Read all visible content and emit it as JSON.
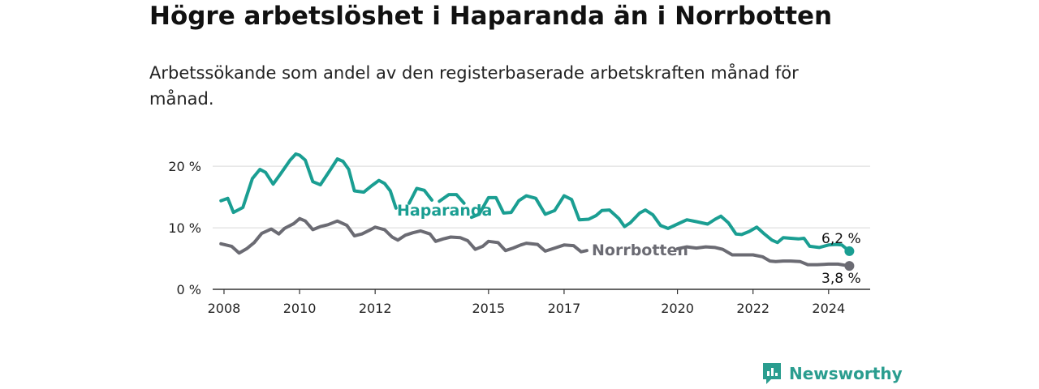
{
  "header": {
    "title": "Högre arbetslöshet i Haparanda än i Norrbotten",
    "subtitle": "Arbetssökande som andel av den registerbaserade arbetskraften månad för månad."
  },
  "brand": {
    "name": "Newsworthy",
    "icon": "newsworthy-logo-icon",
    "color": "#2a9d8f"
  },
  "chart_data": {
    "type": "line",
    "title": "Högre arbetslöshet i Haparanda än i Norrbotten",
    "subtitle": "Arbetssökande som andel av den registerbaserade arbetskraften månad för månad.",
    "xlabel": "",
    "ylabel": "",
    "xlim": [
      2007.7,
      2025.1
    ],
    "ylim": [
      0,
      22
    ],
    "y_ticks": [
      0,
      10,
      20
    ],
    "y_tick_labels": [
      "0 %",
      "10 %",
      "20 %"
    ],
    "x_ticks": [
      2008,
      2010,
      2012,
      2015,
      2017,
      2020,
      2022,
      2024
    ],
    "x_tick_labels": [
      "2008",
      "2010",
      "2012",
      "2015",
      "2017",
      "2020",
      "2022",
      "2024"
    ],
    "grid": "horizontal",
    "series": [
      {
        "name": "Haparanda",
        "color": "#1a9e92",
        "end_label": "6,2 %",
        "points": [
          [
            2007.92,
            14.4
          ],
          [
            2008.1,
            14.8
          ],
          [
            2008.25,
            12.5
          ],
          [
            2008.5,
            13.3
          ],
          [
            2008.75,
            18.0
          ],
          [
            2008.95,
            19.5
          ],
          [
            2009.1,
            19.0
          ],
          [
            2009.3,
            17.1
          ],
          [
            2009.5,
            18.8
          ],
          [
            2009.75,
            21.0
          ],
          [
            2009.9,
            22.0
          ],
          [
            2010.0,
            21.8
          ],
          [
            2010.15,
            21.0
          ],
          [
            2010.35,
            17.5
          ],
          [
            2010.55,
            17.0
          ],
          [
            2010.8,
            19.3
          ],
          [
            2011.0,
            21.2
          ],
          [
            2011.15,
            20.8
          ],
          [
            2011.3,
            19.5
          ],
          [
            2011.45,
            16.0
          ],
          [
            2011.7,
            15.8
          ],
          [
            2011.9,
            16.8
          ],
          [
            2012.1,
            17.7
          ],
          [
            2012.25,
            17.2
          ],
          [
            2012.4,
            16.0
          ],
          [
            2012.55,
            13.2
          ],
          null,
          [
            2012.9,
            14.0
          ],
          [
            2013.1,
            16.4
          ],
          [
            2013.3,
            16.1
          ],
          [
            2013.5,
            14.5
          ],
          null,
          [
            2013.7,
            14.3
          ],
          [
            2013.95,
            15.4
          ],
          [
            2014.15,
            15.4
          ],
          [
            2014.35,
            14.0
          ],
          null,
          [
            2014.55,
            11.7
          ],
          [
            2014.75,
            12.2
          ],
          [
            2015.0,
            14.9
          ],
          [
            2015.2,
            14.9
          ],
          [
            2015.4,
            12.4
          ],
          [
            2015.6,
            12.5
          ],
          [
            2015.8,
            14.4
          ],
          [
            2016.0,
            15.2
          ],
          [
            2016.25,
            14.8
          ],
          [
            2016.5,
            12.2
          ],
          [
            2016.75,
            12.8
          ],
          [
            2017.0,
            15.2
          ],
          [
            2017.2,
            14.6
          ],
          [
            2017.4,
            11.3
          ],
          [
            2017.65,
            11.4
          ],
          [
            2017.85,
            12.0
          ],
          [
            2018.0,
            12.8
          ],
          [
            2018.2,
            12.9
          ],
          [
            2018.45,
            11.5
          ],
          [
            2018.6,
            10.2
          ],
          [
            2018.75,
            10.8
          ],
          [
            2019.0,
            12.4
          ],
          [
            2019.15,
            12.9
          ],
          [
            2019.35,
            12.1
          ],
          [
            2019.55,
            10.4
          ],
          [
            2019.75,
            9.9
          ],
          [
            2020.0,
            10.6
          ],
          [
            2020.25,
            11.3
          ],
          [
            2020.5,
            11.0
          ],
          [
            2020.65,
            10.8
          ],
          [
            2020.8,
            10.6
          ],
          [
            2021.0,
            11.4
          ],
          [
            2021.15,
            11.9
          ],
          [
            2021.35,
            10.8
          ],
          [
            2021.55,
            9.0
          ],
          [
            2021.7,
            8.9
          ],
          [
            2021.9,
            9.4
          ],
          [
            2022.1,
            10.1
          ],
          [
            2022.3,
            9.0
          ],
          [
            2022.5,
            8.0
          ],
          [
            2022.65,
            7.6
          ],
          [
            2022.8,
            8.4
          ],
          [
            2023.0,
            8.3
          ],
          [
            2023.2,
            8.2
          ],
          [
            2023.35,
            8.3
          ],
          [
            2023.5,
            7.0
          ],
          [
            2023.75,
            6.8
          ],
          [
            2024.0,
            7.2
          ],
          [
            2024.2,
            7.3
          ],
          [
            2024.35,
            7.2
          ],
          [
            2024.55,
            6.2
          ]
        ]
      },
      {
        "name": "Norrbotten",
        "color": "#6b6b73",
        "end_label": "3,8 %",
        "points": [
          [
            2007.92,
            7.4
          ],
          [
            2008.2,
            7.0
          ],
          [
            2008.4,
            5.9
          ],
          [
            2008.6,
            6.6
          ],
          [
            2008.8,
            7.6
          ],
          [
            2009.0,
            9.1
          ],
          [
            2009.25,
            9.8
          ],
          [
            2009.45,
            9.0
          ],
          [
            2009.6,
            9.9
          ],
          [
            2009.85,
            10.7
          ],
          [
            2010.0,
            11.5
          ],
          [
            2010.15,
            11.1
          ],
          [
            2010.35,
            9.7
          ],
          [
            2010.55,
            10.2
          ],
          [
            2010.75,
            10.5
          ],
          [
            2011.0,
            11.1
          ],
          [
            2011.25,
            10.4
          ],
          [
            2011.45,
            8.7
          ],
          [
            2011.65,
            9.0
          ],
          [
            2011.85,
            9.6
          ],
          [
            2012.0,
            10.1
          ],
          [
            2012.25,
            9.7
          ],
          [
            2012.45,
            8.5
          ],
          [
            2012.6,
            8.0
          ],
          [
            2012.8,
            8.8
          ],
          [
            2013.0,
            9.2
          ],
          [
            2013.2,
            9.5
          ],
          [
            2013.45,
            9.0
          ],
          [
            2013.6,
            7.8
          ],
          [
            2013.8,
            8.2
          ],
          [
            2014.0,
            8.5
          ],
          [
            2014.25,
            8.4
          ],
          [
            2014.45,
            7.9
          ],
          [
            2014.65,
            6.5
          ],
          [
            2014.85,
            7.0
          ],
          [
            2015.0,
            7.8
          ],
          [
            2015.25,
            7.6
          ],
          [
            2015.45,
            6.3
          ],
          [
            2015.65,
            6.7
          ],
          [
            2015.85,
            7.2
          ],
          [
            2016.0,
            7.5
          ],
          [
            2016.3,
            7.3
          ],
          [
            2016.5,
            6.2
          ],
          [
            2016.75,
            6.7
          ],
          [
            2017.0,
            7.2
          ],
          [
            2017.25,
            7.1
          ],
          [
            2017.45,
            6.1
          ],
          [
            2017.6,
            6.3
          ],
          null,
          [
            2020.0,
            6.6
          ],
          [
            2020.25,
            6.9
          ],
          [
            2020.5,
            6.7
          ],
          [
            2020.75,
            6.9
          ],
          [
            2021.0,
            6.8
          ],
          [
            2021.2,
            6.5
          ],
          [
            2021.45,
            5.6
          ],
          [
            2021.75,
            5.6
          ],
          [
            2022.0,
            5.6
          ],
          [
            2022.25,
            5.3
          ],
          [
            2022.45,
            4.6
          ],
          [
            2022.6,
            4.5
          ],
          [
            2022.8,
            4.6
          ],
          [
            2023.0,
            4.6
          ],
          [
            2023.25,
            4.5
          ],
          [
            2023.45,
            4.0
          ],
          [
            2023.7,
            4.0
          ],
          [
            2024.0,
            4.1
          ],
          [
            2024.25,
            4.1
          ],
          [
            2024.55,
            3.8
          ]
        ]
      }
    ]
  }
}
